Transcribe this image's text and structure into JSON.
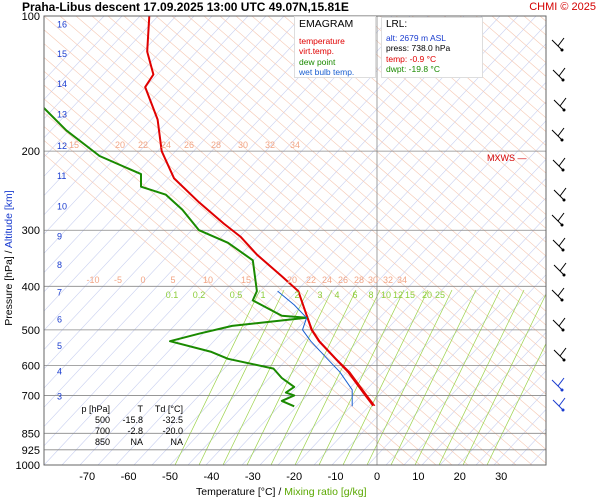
{
  "header": {
    "title": "Praha-Libus   descent   17.09.2025 13:00 UTC  49.07N,15.81E",
    "copyright": "CHMI © 2025"
  },
  "legend": {
    "title": "EMAGRAM",
    "items": [
      {
        "label": "temperature",
        "color": "#e00000"
      },
      {
        "label": "virt.temp.",
        "color": "#e00000"
      },
      {
        "label": "dew point",
        "color": "#1a8a00"
      },
      {
        "label": "wet bulb temp.",
        "color": "#1a5fd0"
      }
    ]
  },
  "lrl": {
    "title": "LRL:",
    "lines": [
      {
        "text": "alt: 2679 m ASL",
        "color": "#1a3ccf"
      },
      {
        "text": "press: 738.0 hPa",
        "color": "#000000"
      },
      {
        "text": "temp: -0.9 °C",
        "color": "#e00000"
      },
      {
        "text": "dwpt: -19.8 °C",
        "color": "#1a8a00"
      }
    ]
  },
  "table": {
    "headers": [
      "p [hPa]",
      "T",
      "Td [°C]"
    ],
    "rows": [
      [
        "500",
        "-15.8",
        "-32.5"
      ],
      [
        "700",
        "-2.8",
        "-20.0"
      ],
      [
        "850",
        "NA",
        "NA"
      ]
    ]
  },
  "axes": {
    "x_title_main": "Temperature [°C]  /  ",
    "x_title_mr": "Mixing ratio [g/kg]",
    "y_title_main": "Pressure [hPa]  /  ",
    "y_title_alt": "Altitude [km]",
    "mxws_label": "MXWS"
  },
  "chart_data": {
    "type": "line",
    "x_ticks": [
      -70,
      -60,
      -50,
      -40,
      -30,
      -20,
      -10,
      0,
      10,
      20,
      30
    ],
    "x_tick_labels": [
      "-70",
      "-60",
      "-50",
      "-40",
      "-30",
      "-20",
      "-10",
      "0",
      "10",
      "20",
      "30"
    ],
    "y_log": true,
    "ylim": [
      1000,
      100
    ],
    "xlim": [
      -80,
      40
    ],
    "p_ticks": [
      100,
      200,
      300,
      400,
      500,
      600,
      700,
      850,
      925,
      1000
    ],
    "p_tick_labels": [
      "100",
      "200",
      "300",
      "400",
      "500",
      "600",
      "700",
      "850",
      "925",
      "1000"
    ],
    "alt_ticks": [
      {
        "km": "16",
        "p": 104
      },
      {
        "km": "15",
        "p": 121
      },
      {
        "km": "14",
        "p": 141
      },
      {
        "km": "13",
        "p": 165
      },
      {
        "km": "12",
        "p": 194
      },
      {
        "km": "11",
        "p": 226
      },
      {
        "km": "10",
        "p": 264
      },
      {
        "km": "9",
        "p": 308
      },
      {
        "km": "8",
        "p": 357
      },
      {
        "km": "7",
        "p": 411
      },
      {
        "km": "6",
        "p": 472
      },
      {
        "km": "5",
        "p": 540
      },
      {
        "km": "4",
        "p": 616
      },
      {
        "km": "3",
        "p": 701
      }
    ],
    "series": [
      {
        "name": "temperature",
        "color": "#e00000",
        "points": [
          [
            -55,
            100
          ],
          [
            -55.5,
            120
          ],
          [
            -54,
            135
          ],
          [
            -56,
            144
          ],
          [
            -53,
            170
          ],
          [
            -52,
            200
          ],
          [
            -49,
            230
          ],
          [
            -43,
            260
          ],
          [
            -37,
            290
          ],
          [
            -33,
            310
          ],
          [
            -29,
            340
          ],
          [
            -23,
            380
          ],
          [
            -19,
            410
          ],
          [
            -15.8,
            500
          ],
          [
            -14,
            530
          ],
          [
            -10,
            580
          ],
          [
            -7,
            620
          ],
          [
            -2.8,
            700
          ],
          [
            -0.9,
            738
          ]
        ]
      },
      {
        "name": "virt.temp.",
        "color": "#e00000",
        "points": [
          [
            -52,
            200
          ],
          [
            -49,
            230
          ],
          [
            -43,
            260
          ],
          [
            -37,
            290
          ],
          [
            -33,
            310
          ],
          [
            -29,
            340
          ],
          [
            -23,
            380
          ],
          [
            -19,
            410
          ],
          [
            -15.6,
            500
          ],
          [
            -13.8,
            530
          ],
          [
            -9.8,
            580
          ],
          [
            -6.6,
            620
          ],
          [
            -2.4,
            700
          ],
          [
            -0.5,
            738
          ]
        ]
      },
      {
        "name": "dew point",
        "color": "#1a8a00",
        "points": [
          [
            -90,
            125
          ],
          [
            -82,
            155
          ],
          [
            -75,
            180
          ],
          [
            -67,
            205
          ],
          [
            -57,
            225
          ],
          [
            -57,
            240
          ],
          [
            -51,
            250
          ],
          [
            -47,
            270
          ],
          [
            -43,
            300
          ],
          [
            -36,
            320
          ],
          [
            -30,
            350
          ],
          [
            -29,
            410
          ],
          [
            -30,
            430
          ],
          [
            -23,
            465
          ],
          [
            -17,
            470
          ],
          [
            -35,
            490
          ],
          [
            -43,
            510
          ],
          [
            -50,
            530
          ],
          [
            -40,
            560
          ],
          [
            -36,
            580
          ],
          [
            -25,
            610
          ],
          [
            -23,
            640
          ],
          [
            -20,
            670
          ],
          [
            -22,
            690
          ],
          [
            -20,
            700
          ],
          [
            -23,
            720
          ],
          [
            -20,
            740
          ]
        ]
      },
      {
        "name": "wet bulb temp.",
        "color": "#1a5fd0",
        "points": [
          [
            -24,
            410
          ],
          [
            -20,
            440
          ],
          [
            -17,
            470
          ],
          [
            -18,
            500
          ],
          [
            -16,
            530
          ],
          [
            -12,
            580
          ],
          [
            -9,
            620
          ],
          [
            -6,
            680
          ],
          [
            -6,
            740
          ]
        ]
      }
    ],
    "mixing_ratio_labels": [
      "0.1",
      "0.2",
      "0.5",
      "1",
      "2",
      "3",
      "4",
      "6",
      "8",
      "10",
      "12",
      "15",
      "20",
      "25"
    ],
    "theta_labels": [
      "-10",
      "-5",
      "0",
      "5",
      "10",
      "15",
      "20",
      "22",
      "24",
      "26",
      "28",
      "30",
      "32",
      "34"
    ],
    "upper_theta_labels": [
      "15",
      "20",
      "22",
      "24",
      "26",
      "28",
      "30",
      "32",
      "34"
    ]
  }
}
